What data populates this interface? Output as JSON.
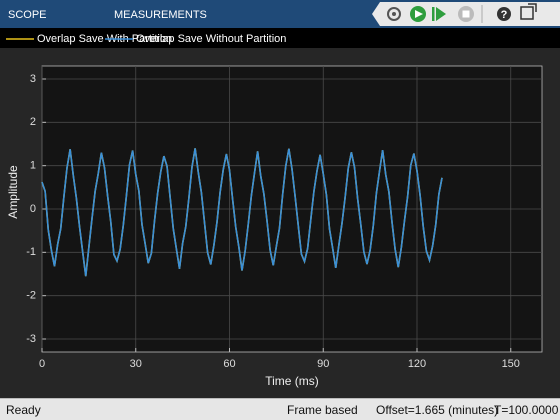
{
  "tabs": [
    "SCOPE",
    "MEASUREMENTS"
  ],
  "status_bar": {
    "left": "Ready",
    "right": [
      "Frame based",
      "Offset=1.665 (minutes)",
      "T=100.0000"
    ]
  },
  "chart_data": {
    "type": "line",
    "xlabel": "Time (ms)",
    "ylabel": "Amplitude",
    "xlim": [
      0,
      160
    ],
    "ylim": [
      -3.3,
      3.3
    ],
    "xticks": [
      0,
      30,
      60,
      90,
      120,
      150
    ],
    "yticks": [
      -3,
      -2,
      -1,
      0,
      1,
      2,
      3
    ],
    "grid": true,
    "legend": "top",
    "x": [
      0,
      1,
      2,
      3,
      4,
      5,
      6,
      7,
      8,
      9,
      10,
      11,
      12,
      13,
      14,
      15,
      16,
      17,
      18,
      19,
      20,
      21,
      22,
      23,
      24,
      25,
      26,
      27,
      28,
      29,
      30,
      31,
      32,
      33,
      34,
      35,
      36,
      37,
      38,
      39,
      40,
      41,
      42,
      43,
      44,
      45,
      46,
      47,
      48,
      49,
      50,
      51,
      52,
      53,
      54,
      55,
      56,
      57,
      58,
      59,
      60,
      61,
      62,
      63,
      64,
      65,
      66,
      67,
      68,
      69,
      70,
      71,
      72,
      73,
      74,
      75,
      76,
      77,
      78,
      79,
      80,
      81,
      82,
      83,
      84,
      85,
      86,
      87,
      88,
      89,
      90,
      91,
      92,
      93,
      94,
      95,
      96,
      97,
      98,
      99,
      100,
      101,
      102,
      103,
      104,
      105,
      106,
      107,
      108,
      109,
      110,
      111,
      112,
      113,
      114,
      115,
      116,
      117,
      118,
      119,
      120,
      121,
      122,
      123,
      124,
      125,
      126,
      127,
      128
    ],
    "series": [
      {
        "name": "Overlap Save With Partition",
        "color": "#e8c21c",
        "values": [
          0.62,
          0.41,
          -0.48,
          -0.95,
          -1.32,
          -0.82,
          -0.45,
          0.28,
          0.95,
          1.38,
          0.78,
          0.25,
          -0.4,
          -0.98,
          -1.55,
          -0.88,
          -0.22,
          0.41,
          0.82,
          1.3,
          0.95,
          0.3,
          -0.29,
          -1.05,
          -1.2,
          -0.93,
          -0.38,
          0.3,
          1.02,
          1.35,
          0.8,
          0.42,
          -0.36,
          -0.8,
          -1.25,
          -1.02,
          -0.28,
          0.36,
          0.86,
          1.22,
          0.99,
          0.27,
          -0.45,
          -0.92,
          -1.38,
          -0.79,
          -0.41,
          0.25,
          0.97,
          1.4,
          0.85,
          0.38,
          -0.31,
          -1.01,
          -1.28,
          -0.84,
          -0.3,
          0.39,
          0.91,
          1.27,
          0.9,
          0.22,
          -0.42,
          -0.88,
          -1.42,
          -0.97,
          -0.35,
          0.31,
          0.83,
          1.33,
          0.76,
          0.35,
          -0.27,
          -0.95,
          -1.3,
          -0.86,
          -0.44,
          0.33,
          0.99,
          1.39,
          0.92,
          0.29,
          -0.38,
          -1.04,
          -1.21,
          -0.91,
          -0.25,
          0.4,
          0.88,
          1.25,
          0.81,
          0.33,
          -0.46,
          -0.9,
          -1.36,
          -0.83,
          -0.33,
          0.27,
          0.94,
          1.31,
          0.96,
          0.24,
          -0.35,
          -0.99,
          -1.27,
          -0.95,
          -0.39,
          0.36,
          0.87,
          1.36,
          0.79,
          0.4,
          -0.3,
          -0.93,
          -1.34,
          -0.88,
          -0.27,
          0.29,
          1.01,
          1.28,
          0.88,
          0.31,
          -0.41,
          -0.97,
          -1.18,
          -0.85,
          -0.36,
          0.34,
          0.72
        ]
      },
      {
        "name": "Overlap Save Without Partition",
        "color": "#3a8fd8",
        "values": [
          0.62,
          0.41,
          -0.48,
          -0.95,
          -1.32,
          -0.82,
          -0.45,
          0.28,
          0.95,
          1.38,
          0.78,
          0.25,
          -0.4,
          -0.98,
          -1.55,
          -0.88,
          -0.22,
          0.41,
          0.82,
          1.3,
          0.95,
          0.3,
          -0.29,
          -1.05,
          -1.2,
          -0.93,
          -0.38,
          0.3,
          1.02,
          1.35,
          0.8,
          0.42,
          -0.36,
          -0.8,
          -1.25,
          -1.02,
          -0.28,
          0.36,
          0.86,
          1.22,
          0.99,
          0.27,
          -0.45,
          -0.92,
          -1.38,
          -0.79,
          -0.41,
          0.25,
          0.97,
          1.4,
          0.85,
          0.38,
          -0.31,
          -1.01,
          -1.28,
          -0.84,
          -0.3,
          0.39,
          0.91,
          1.27,
          0.9,
          0.22,
          -0.42,
          -0.88,
          -1.42,
          -0.97,
          -0.35,
          0.31,
          0.83,
          1.33,
          0.76,
          0.35,
          -0.27,
          -0.95,
          -1.3,
          -0.86,
          -0.44,
          0.33,
          0.99,
          1.39,
          0.92,
          0.29,
          -0.38,
          -1.04,
          -1.21,
          -0.91,
          -0.25,
          0.4,
          0.88,
          1.25,
          0.81,
          0.33,
          -0.46,
          -0.9,
          -1.36,
          -0.83,
          -0.33,
          0.27,
          0.94,
          1.31,
          0.96,
          0.24,
          -0.35,
          -0.99,
          -1.27,
          -0.95,
          -0.39,
          0.36,
          0.87,
          1.36,
          0.79,
          0.4,
          -0.3,
          -0.93,
          -1.34,
          -0.88,
          -0.27,
          0.29,
          1.01,
          1.28,
          0.88,
          0.31,
          -0.41,
          -0.97,
          -1.18,
          -0.85,
          -0.36,
          0.34,
          0.72
        ]
      }
    ]
  }
}
